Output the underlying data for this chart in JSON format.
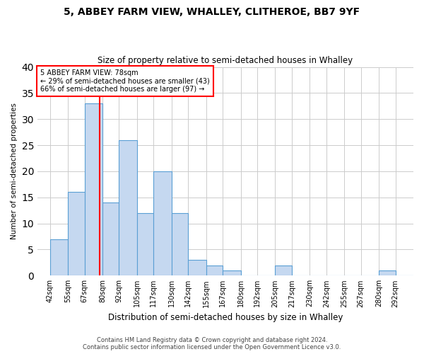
{
  "title": "5, ABBEY FARM VIEW, WHALLEY, CLITHEROE, BB7 9YF",
  "subtitle": "Size of property relative to semi-detached houses in Whalley",
  "xlabel": "Distribution of semi-detached houses by size in Whalley",
  "ylabel": "Number of semi-detached properties",
  "footer1": "Contains HM Land Registry data © Crown copyright and database right 2024.",
  "footer2": "Contains public sector information licensed under the Open Government Licence v3.0.",
  "categories": [
    "42sqm",
    "55sqm",
    "67sqm",
    "80sqm",
    "92sqm",
    "105sqm",
    "117sqm",
    "130sqm",
    "142sqm",
    "155sqm",
    "167sqm",
    "180sqm",
    "192sqm",
    "205sqm",
    "217sqm",
    "230sqm",
    "242sqm",
    "255sqm",
    "267sqm",
    "280sqm",
    "292sqm"
  ],
  "values": [
    7,
    16,
    33,
    14,
    26,
    12,
    20,
    12,
    3,
    2,
    1,
    0,
    0,
    2,
    0,
    0,
    0,
    0,
    0,
    1,
    0
  ],
  "bar_color": "#c5d8f0",
  "bar_edge_color": "#5a9fd4",
  "grid_color": "#cccccc",
  "property_line_x": 78,
  "annotation_title": "5 ABBEY FARM VIEW: 78sqm",
  "annotation_line1": "← 29% of semi-detached houses are smaller (43)",
  "annotation_line2": "66% of semi-detached houses are larger (97) →",
  "annotation_box_color": "white",
  "annotation_box_edge_color": "red",
  "property_line_color": "red",
  "ylim": [
    0,
    40
  ],
  "yticks": [
    0,
    5,
    10,
    15,
    20,
    25,
    30,
    35,
    40
  ],
  "bin_edges": [
    42,
    55,
    67,
    80,
    92,
    105,
    117,
    130,
    142,
    155,
    167,
    180,
    192,
    205,
    217,
    230,
    242,
    255,
    267,
    280,
    292
  ],
  "xlim_left": 33,
  "xlim_right": 305
}
